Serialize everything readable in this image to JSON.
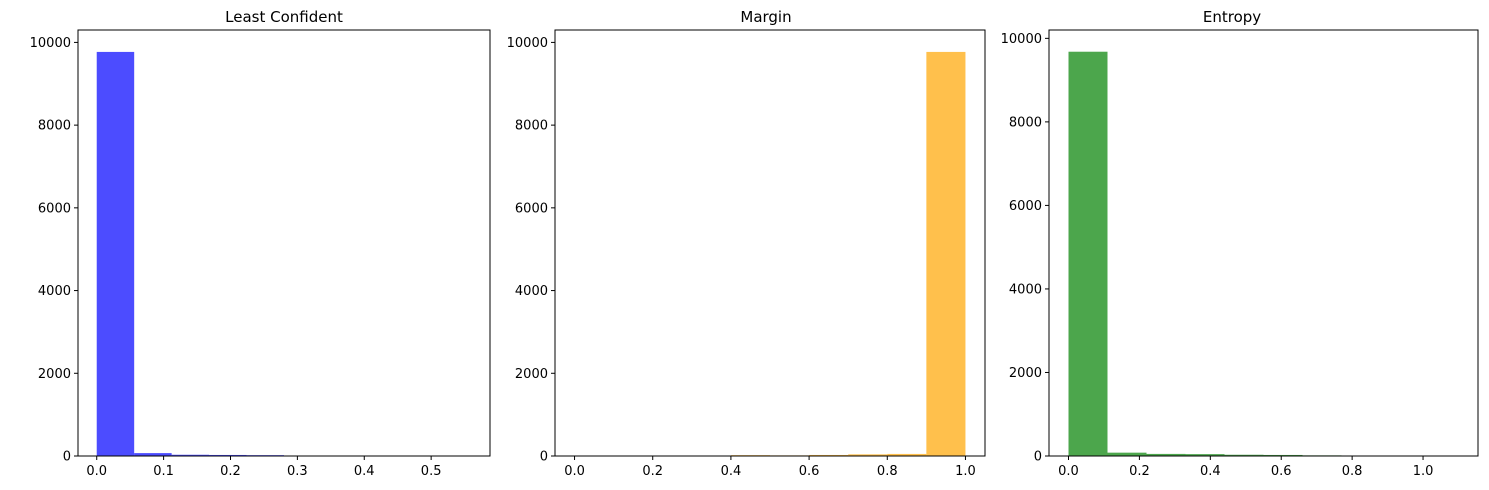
{
  "chart_data": [
    {
      "type": "bar",
      "title": "Least Confident",
      "color": "#0000ff",
      "opacity": 0.7,
      "xlim": [
        -0.028,
        0.588
      ],
      "ylim": [
        0,
        10300
      ],
      "xticks": [
        0.0,
        0.1,
        0.2,
        0.3,
        0.4,
        0.5
      ],
      "xtick_labels": [
        "0.0",
        "0.1",
        "0.2",
        "0.3",
        "0.4",
        "0.5"
      ],
      "yticks": [
        0,
        2000,
        4000,
        6000,
        8000,
        10000
      ],
      "ytick_labels": [
        "0",
        "2000",
        "4000",
        "6000",
        "8000",
        "10000"
      ],
      "bin_edges": [
        0.0,
        0.056,
        0.112,
        0.168,
        0.224,
        0.28,
        0.336,
        0.392,
        0.448,
        0.504,
        0.56
      ],
      "values": [
        9770,
        70,
        30,
        25,
        20,
        5,
        3,
        2,
        1,
        1
      ]
    },
    {
      "type": "bar",
      "title": "Margin",
      "color": "#ffa500",
      "opacity": 0.7,
      "xlim": [
        -0.05,
        1.05
      ],
      "ylim": [
        0,
        10300
      ],
      "xticks": [
        0.0,
        0.2,
        0.4,
        0.6,
        0.8,
        1.0
      ],
      "xtick_labels": [
        "0.0",
        "0.2",
        "0.4",
        "0.6",
        "0.8",
        "1.0"
      ],
      "yticks": [
        0,
        2000,
        4000,
        6000,
        8000,
        10000
      ],
      "ytick_labels": [
        "0",
        "2000",
        "4000",
        "6000",
        "8000",
        "10000"
      ],
      "bin_edges": [
        0.0,
        0.1,
        0.2,
        0.3,
        0.4,
        0.5,
        0.6,
        0.7,
        0.8,
        0.9,
        1.0
      ],
      "values": [
        5,
        5,
        5,
        10,
        20,
        15,
        25,
        40,
        50,
        9770
      ]
    },
    {
      "type": "bar",
      "title": "Entropy",
      "color": "#008000",
      "opacity": 0.7,
      "xlim": [
        -0.055,
        1.155
      ],
      "ylim": [
        0,
        10200
      ],
      "xticks": [
        0.0,
        0.2,
        0.4,
        0.6,
        0.8,
        1.0
      ],
      "xtick_labels": [
        "0.0",
        "0.2",
        "0.4",
        "0.6",
        "0.8",
        "1.0"
      ],
      "yticks": [
        0,
        2000,
        4000,
        6000,
        8000,
        10000
      ],
      "ytick_labels": [
        "0",
        "2000",
        "4000",
        "6000",
        "8000",
        "10000"
      ],
      "bin_edges": [
        0.0,
        0.11,
        0.22,
        0.33,
        0.44,
        0.55,
        0.66,
        0.77,
        0.88,
        0.99,
        1.1
      ],
      "values": [
        9680,
        80,
        50,
        45,
        30,
        25,
        15,
        8,
        5,
        3
      ]
    }
  ]
}
